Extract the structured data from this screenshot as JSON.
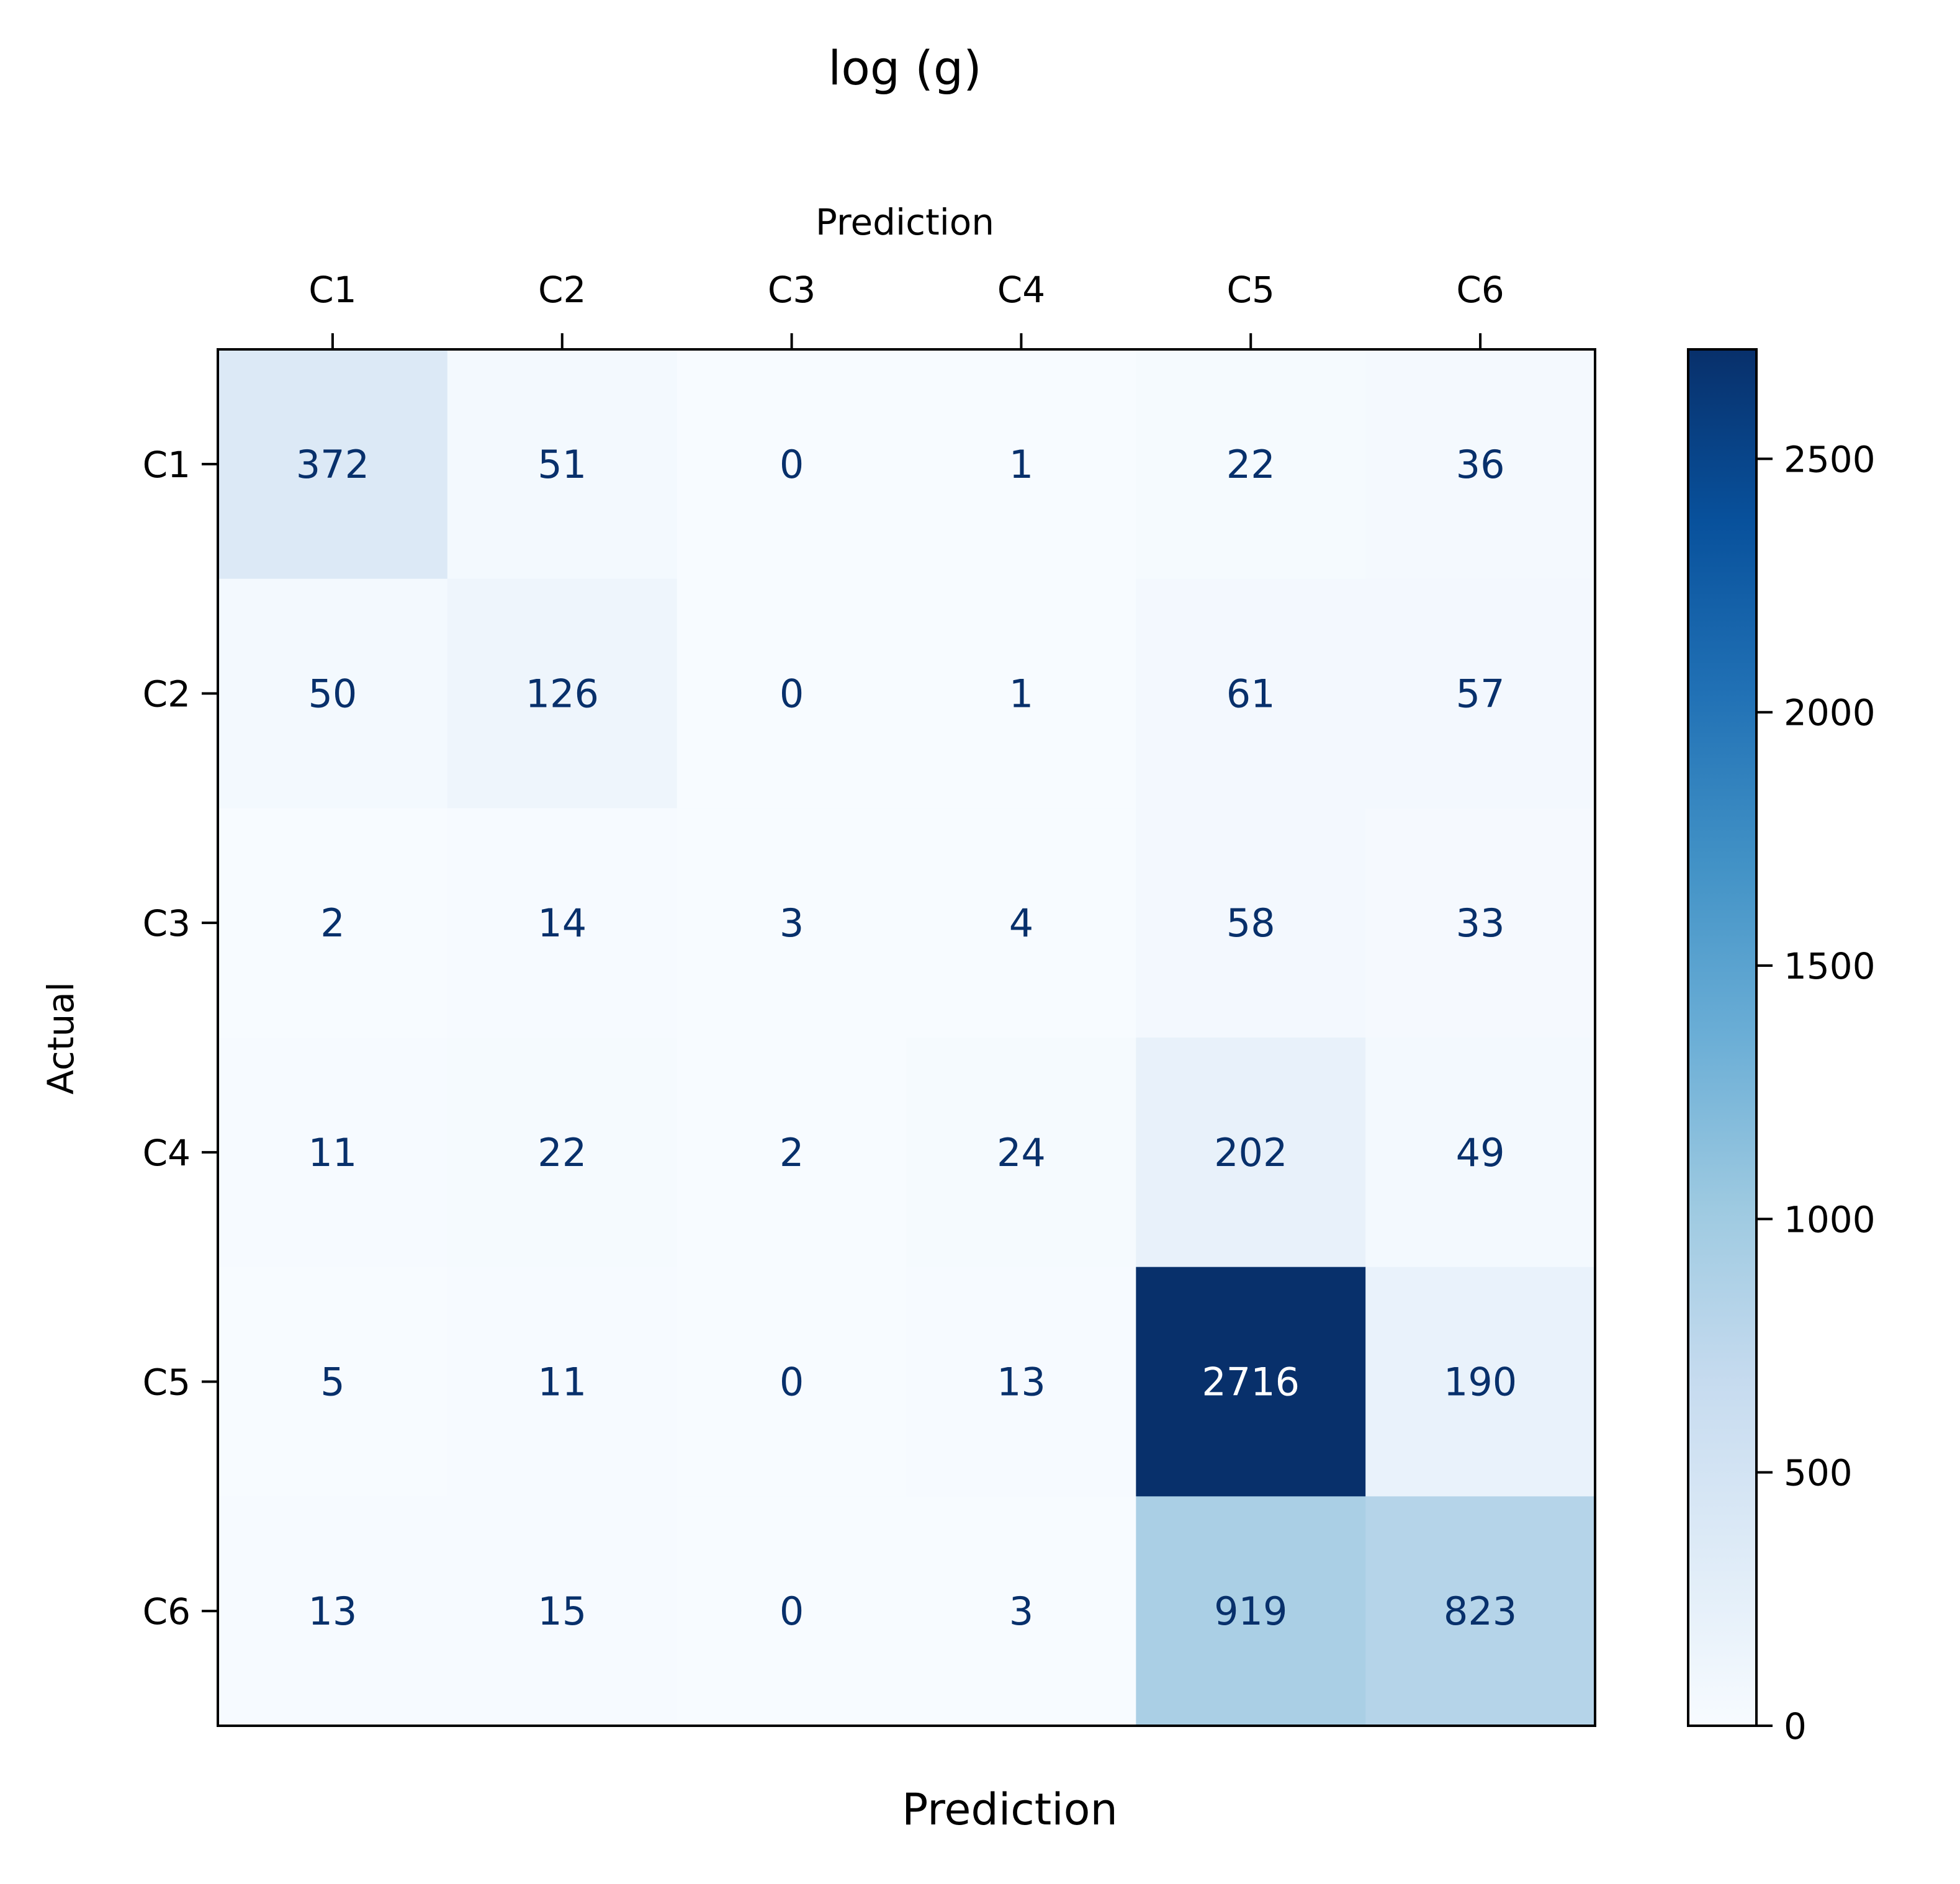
{
  "chart_data": {
    "type": "heatmap",
    "title": "log (g)",
    "xlabel": "Prediction",
    "xlabel_top": "Prediction",
    "ylabel": "Actual",
    "x_categories": [
      "C1",
      "C2",
      "C3",
      "C4",
      "C5",
      "C6"
    ],
    "y_categories": [
      "C1",
      "C2",
      "C3",
      "C4",
      "C5",
      "C6"
    ],
    "values": [
      [
        372,
        51,
        0,
        1,
        22,
        36
      ],
      [
        50,
        126,
        0,
        1,
        61,
        57
      ],
      [
        2,
        14,
        3,
        4,
        58,
        33
      ],
      [
        11,
        22,
        2,
        24,
        202,
        49
      ],
      [
        5,
        11,
        0,
        13,
        2716,
        190
      ],
      [
        13,
        15,
        0,
        3,
        919,
        823
      ]
    ],
    "colormap": "Blues",
    "colorbar": {
      "range": [
        0,
        2716
      ],
      "ticks": [
        0,
        500,
        1000,
        1500,
        2000,
        2500
      ],
      "tick_labels": [
        "0",
        "500",
        "1000",
        "1500",
        "2000",
        "2500"
      ]
    },
    "annotation_colors": {
      "dark_text": "#08306b",
      "light_text": "#ffffff"
    }
  }
}
